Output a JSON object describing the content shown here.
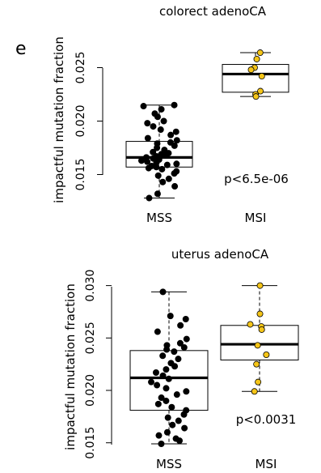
{
  "panel_letter": "e",
  "colors": {
    "msi_point": "#f5c518",
    "mss_point": "#000000",
    "box": "#000000"
  },
  "chart_data": [
    {
      "type": "box",
      "title": "colorect adenoCA",
      "ylabel": "impactful mutation fraction",
      "categories": [
        "MSS",
        "MSI"
      ],
      "y_ticks": [
        "0.015",
        "0.020",
        "0.025"
      ],
      "ylim": [
        0.0135,
        0.027
      ],
      "annotation": "p<6.5e-06",
      "groups": [
        {
          "name": "MSS",
          "point_color": "#000000",
          "box": {
            "whisker_low": 0.0128,
            "q1": 0.0157,
            "median": 0.0166,
            "q3": 0.0181,
            "whisker_high": 0.0215
          },
          "points": [
            0.0215,
            0.0214,
            0.0211,
            0.0207,
            0.0204,
            0.02,
            0.0198,
            0.0195,
            0.0192,
            0.019,
            0.0187,
            0.0184,
            0.0182,
            0.018,
            0.0179,
            0.0177,
            0.0175,
            0.0173,
            0.0171,
            0.017,
            0.0169,
            0.0168,
            0.0167,
            0.0166,
            0.0165,
            0.0164,
            0.0163,
            0.0162,
            0.0161,
            0.016,
            0.0159,
            0.0158,
            0.0157,
            0.0156,
            0.0155,
            0.0153,
            0.0151,
            0.0149,
            0.0146,
            0.0143,
            0.0139,
            0.0132,
            0.0128
          ]
        },
        {
          "name": "MSI",
          "point_color": "#f5c518",
          "box": {
            "whisker_low": 0.0223,
            "q1": 0.0227,
            "median": 0.0244,
            "q3": 0.0253,
            "whisker_high": 0.0264
          },
          "points": [
            0.0264,
            0.0258,
            0.025,
            0.0248,
            0.0242,
            0.0228,
            0.0225,
            0.0223
          ]
        }
      ]
    },
    {
      "type": "box",
      "title": "uterus adenoCA",
      "ylabel": "impactful mutation fraction",
      "categories": [
        "MSS",
        "MSI"
      ],
      "y_ticks": [
        "0.015",
        "0.020",
        "0.025",
        "0.030"
      ],
      "ylim": [
        0.0147,
        0.0312
      ],
      "annotation": "p<0.0031",
      "groups": [
        {
          "name": "MSS",
          "point_color": "#000000",
          "box": {
            "whisker_low": 0.0149,
            "q1": 0.0181,
            "median": 0.0212,
            "q3": 0.0238,
            "whisker_high": 0.0294
          },
          "points": [
            0.0294,
            0.0271,
            0.0268,
            0.0262,
            0.0256,
            0.0249,
            0.0245,
            0.0243,
            0.0241,
            0.0239,
            0.0237,
            0.0233,
            0.023,
            0.0226,
            0.0223,
            0.022,
            0.0217,
            0.0214,
            0.0211,
            0.0208,
            0.0205,
            0.0202,
            0.0199,
            0.0196,
            0.0193,
            0.019,
            0.0187,
            0.0184,
            0.0181,
            0.0177,
            0.0174,
            0.0171,
            0.0167,
            0.0164,
            0.016,
            0.0157,
            0.0154,
            0.0152,
            0.0149
          ]
        },
        {
          "name": "MSI",
          "point_color": "#f5c518",
          "box": {
            "whisker_low": 0.0199,
            "q1": 0.0229,
            "median": 0.0244,
            "q3": 0.0262,
            "whisker_high": 0.03
          },
          "points": [
            0.03,
            0.0273,
            0.0263,
            0.0261,
            0.0258,
            0.0243,
            0.0234,
            0.0225,
            0.0208,
            0.0199
          ]
        }
      ]
    }
  ]
}
